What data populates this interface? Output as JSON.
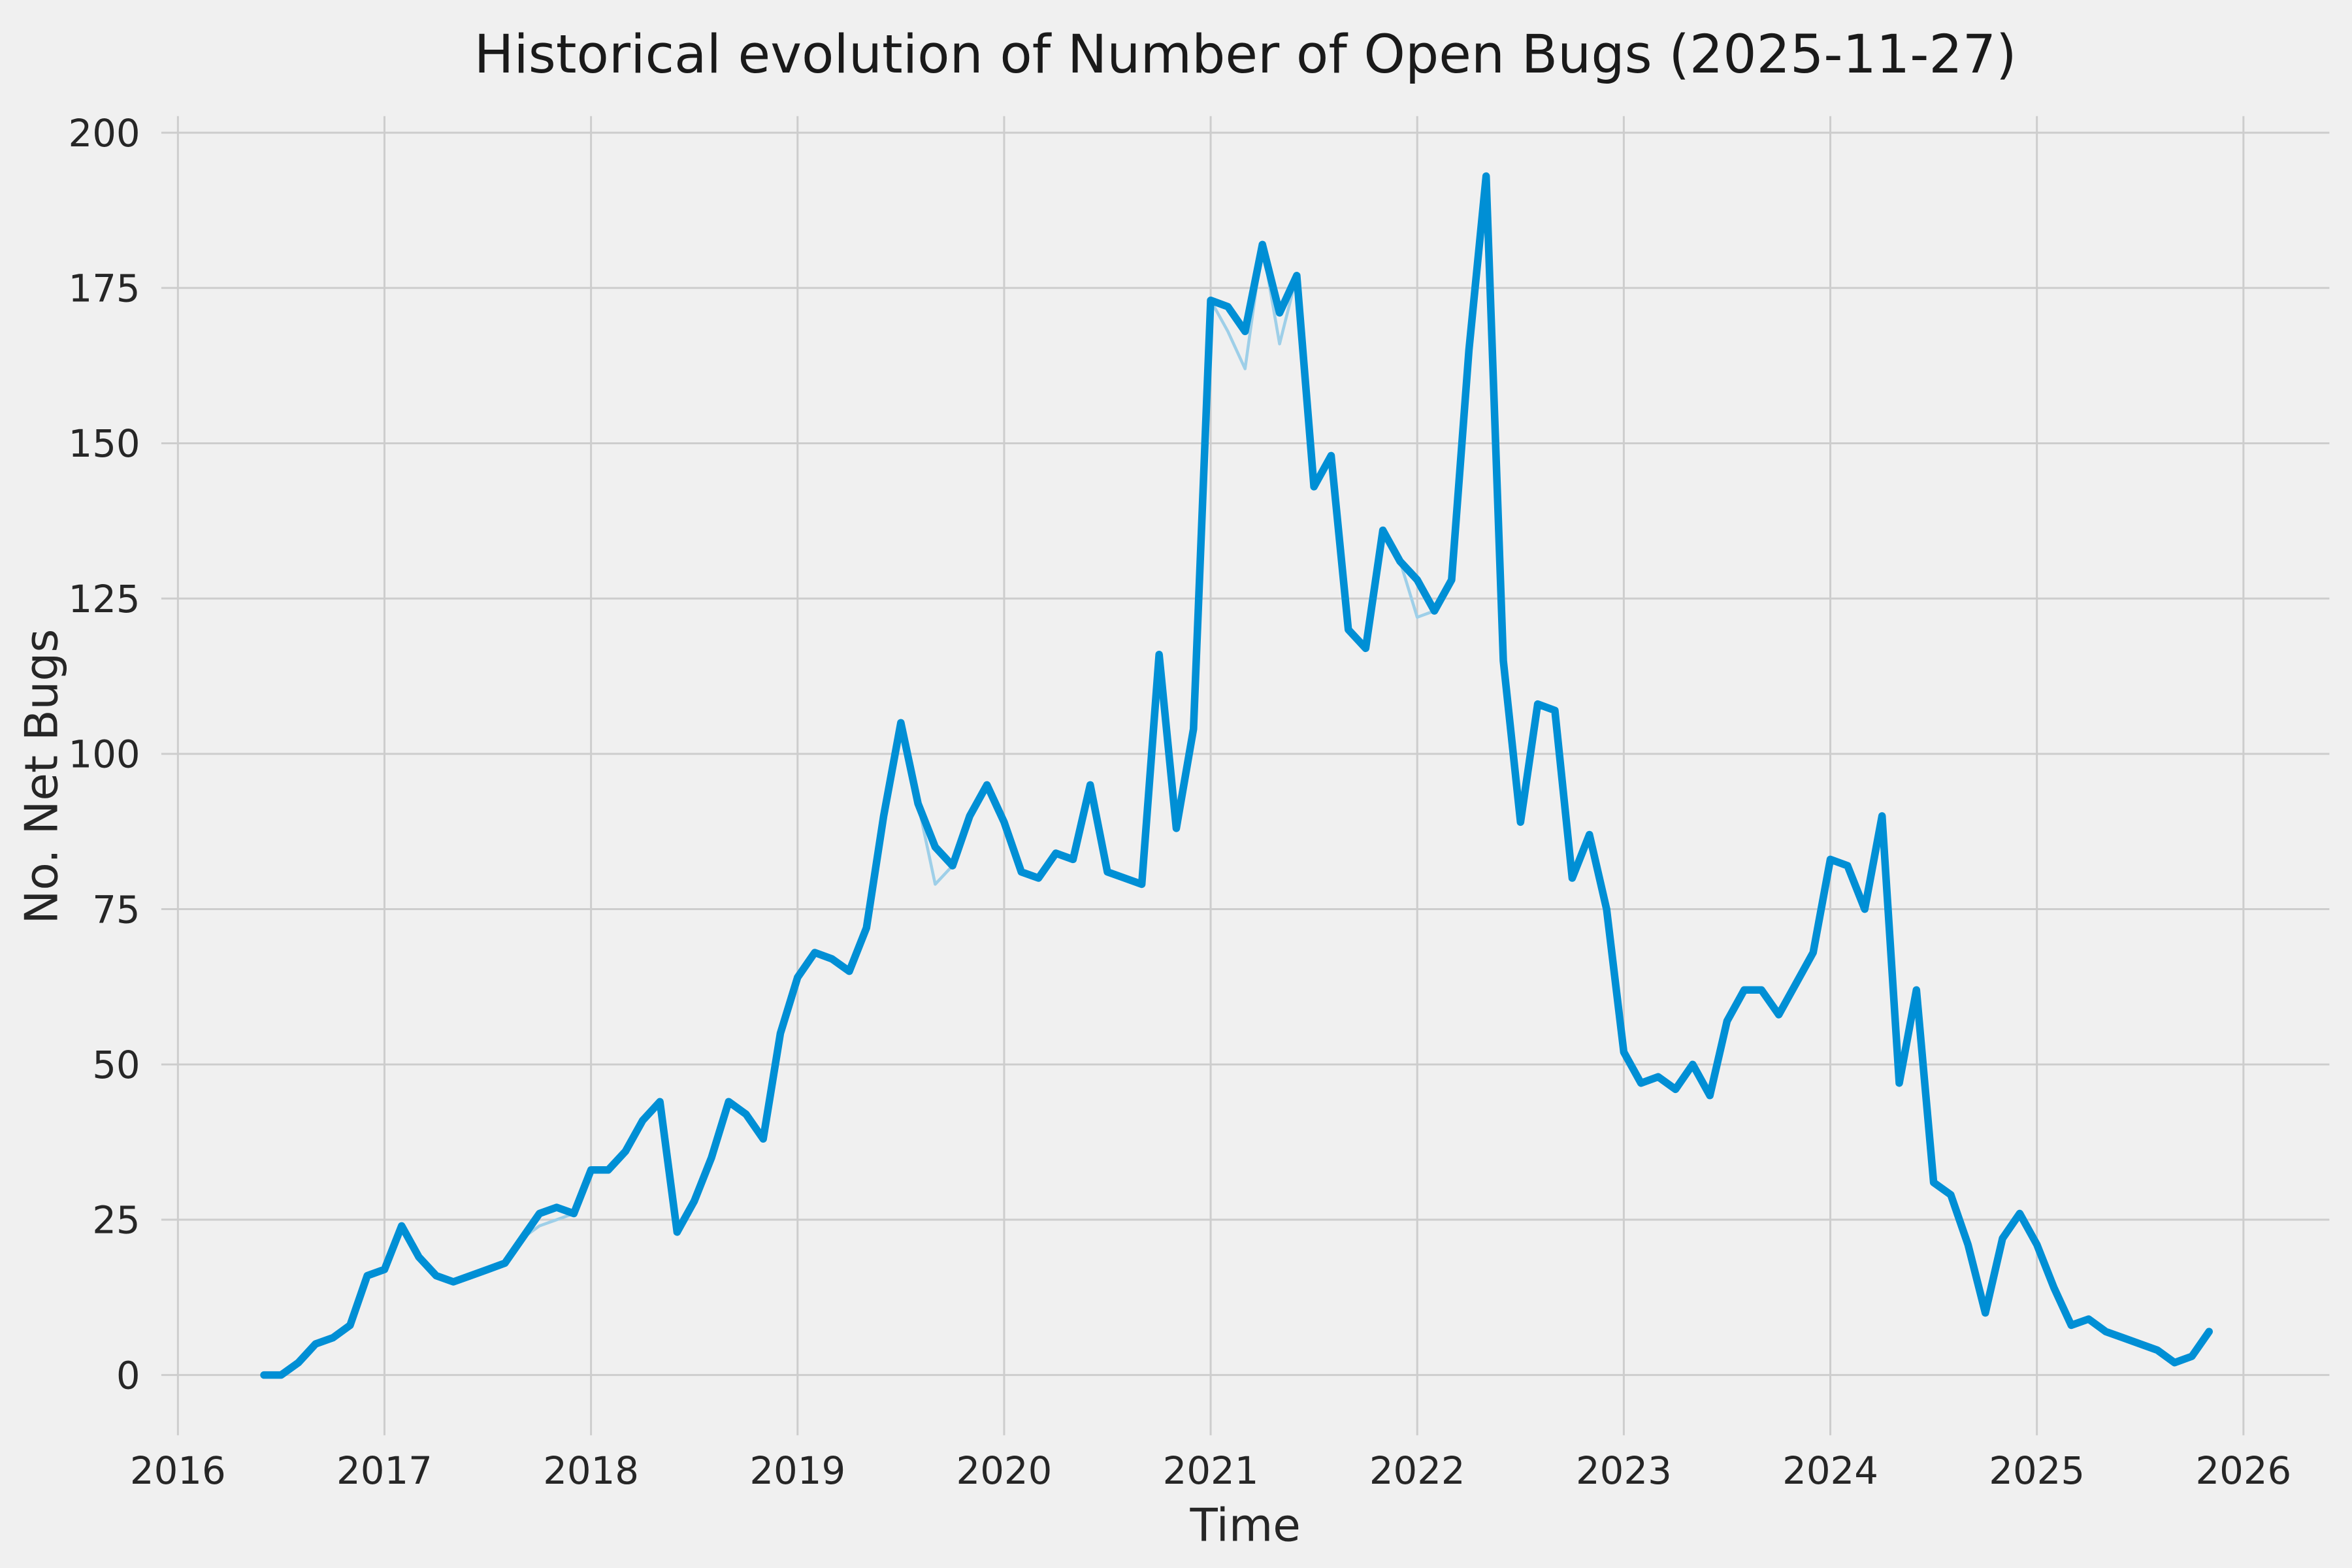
{
  "chart_data": {
    "type": "line",
    "title": "Historical evolution of Number of Open Bugs (2025-11-27)",
    "xlabel": "Time",
    "ylabel": "No. Net Bugs",
    "x_ticks": [
      2016,
      2017,
      2018,
      2019,
      2020,
      2021,
      2022,
      2023,
      2024,
      2025,
      2026
    ],
    "y_ticks": [
      0,
      25,
      50,
      75,
      100,
      125,
      150,
      175,
      200
    ],
    "xlim": [
      2015.92,
      2026.42
    ],
    "ylim": [
      -10,
      203
    ],
    "grid": true,
    "legend": "none",
    "background_color": "#f0f0f0",
    "grid_color": "#cdcdcd",
    "x": [
      "2016-06",
      "2016-07",
      "2016-08",
      "2016-09",
      "2016-10",
      "2016-11",
      "2016-12",
      "2017-01",
      "2017-02",
      "2017-03",
      "2017-04",
      "2017-05",
      "2017-06",
      "2017-07",
      "2017-08",
      "2017-09",
      "2017-10",
      "2017-11",
      "2017-12",
      "2018-01",
      "2018-02",
      "2018-03",
      "2018-04",
      "2018-05",
      "2018-06",
      "2018-07",
      "2018-08",
      "2018-09",
      "2018-10",
      "2018-11",
      "2018-12",
      "2019-01",
      "2019-02",
      "2019-03",
      "2019-04",
      "2019-05",
      "2019-06",
      "2019-07",
      "2019-08",
      "2019-09",
      "2019-10",
      "2019-11",
      "2019-12",
      "2020-01",
      "2020-02",
      "2020-03",
      "2020-04",
      "2020-05",
      "2020-06",
      "2020-07",
      "2020-08",
      "2020-09",
      "2020-10",
      "2020-11",
      "2020-12",
      "2021-01",
      "2021-02",
      "2021-03",
      "2021-04",
      "2021-05",
      "2021-06",
      "2021-07",
      "2021-08",
      "2021-09",
      "2021-10",
      "2021-11",
      "2021-12",
      "2022-01",
      "2022-02",
      "2022-03",
      "2022-04",
      "2022-05",
      "2022-06",
      "2022-07",
      "2022-08",
      "2022-09",
      "2022-10",
      "2022-11",
      "2022-12",
      "2023-01",
      "2023-02",
      "2023-03",
      "2023-04",
      "2023-05",
      "2023-06",
      "2023-07",
      "2023-08",
      "2023-09",
      "2023-10",
      "2023-11",
      "2023-12",
      "2024-01",
      "2024-02",
      "2024-03",
      "2024-04",
      "2024-05",
      "2024-06",
      "2024-07",
      "2024-08",
      "2024-09",
      "2024-10",
      "2024-11",
      "2024-12",
      "2025-01",
      "2025-02",
      "2025-03",
      "2025-04",
      "2025-05",
      "2025-06",
      "2025-07",
      "2025-08",
      "2025-09",
      "2025-10",
      "2025-11"
    ],
    "series": [
      {
        "name": "open-bugs-raw",
        "color": "#9ecfe8",
        "width": 2,
        "values": [
          0,
          0,
          2,
          5,
          6,
          8,
          16,
          17,
          24,
          19,
          16,
          15,
          16,
          17,
          18,
          22,
          24,
          25,
          26,
          33,
          33,
          36,
          41,
          44,
          23,
          28,
          35,
          44,
          42,
          38,
          55,
          64,
          68,
          67,
          65,
          72,
          90,
          105,
          92,
          79,
          82,
          90,
          95,
          89,
          81,
          80,
          84,
          83,
          95,
          81,
          80,
          79,
          112,
          88,
          104,
          173,
          168,
          162,
          182,
          166,
          177,
          143,
          148,
          120,
          117,
          136,
          131,
          122,
          123,
          128,
          165,
          193,
          115,
          89,
          108,
          107,
          80,
          87,
          75,
          52,
          47,
          48,
          46,
          50,
          45,
          57,
          62,
          62,
          58,
          63,
          68,
          83,
          82,
          75,
          90,
          47,
          62,
          31,
          29,
          21,
          10,
          22,
          26,
          21,
          14,
          8,
          9,
          7,
          6,
          5,
          4,
          2,
          3,
          7
        ]
      },
      {
        "name": "open-bugs",
        "color": "#008fd5",
        "width": 5,
        "values": [
          0,
          0,
          2,
          5,
          6,
          8,
          16,
          17,
          24,
          19,
          16,
          15,
          16,
          17,
          18,
          22,
          26,
          27,
          26,
          33,
          33,
          36,
          41,
          44,
          23,
          28,
          35,
          44,
          42,
          38,
          55,
          64,
          68,
          67,
          65,
          72,
          90,
          105,
          92,
          85,
          82,
          90,
          95,
          89,
          81,
          80,
          84,
          83,
          95,
          81,
          80,
          79,
          116,
          88,
          104,
          173,
          172,
          168,
          182,
          171,
          177,
          143,
          148,
          120,
          117,
          136,
          131,
          128,
          123,
          128,
          165,
          193,
          115,
          89,
          108,
          107,
          80,
          87,
          75,
          52,
          47,
          48,
          46,
          50,
          45,
          57,
          62,
          62,
          58,
          63,
          68,
          83,
          82,
          75,
          90,
          47,
          62,
          31,
          29,
          21,
          10,
          22,
          26,
          21,
          14,
          8,
          9,
          7,
          6,
          5,
          4,
          2,
          3,
          7
        ]
      }
    ]
  }
}
